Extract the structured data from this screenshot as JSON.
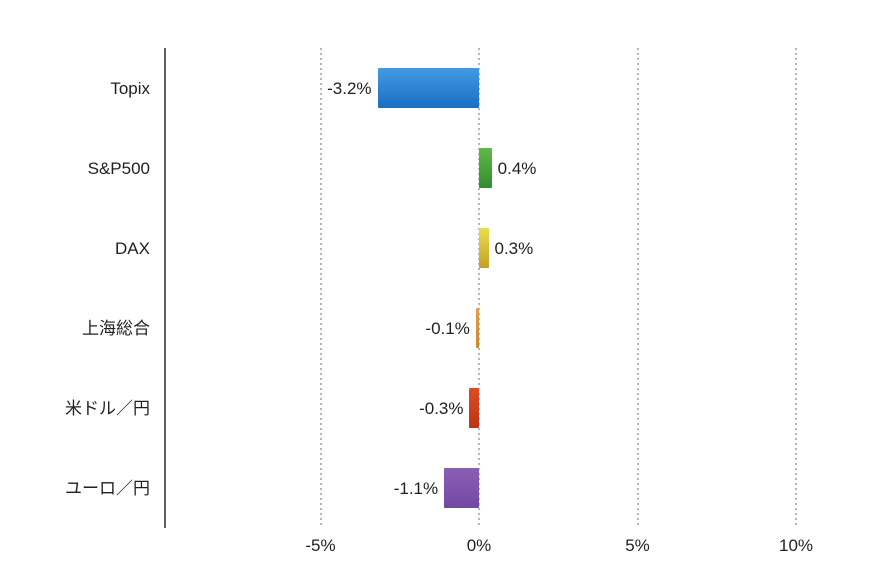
{
  "chart_data": {
    "type": "bar",
    "orientation": "horizontal",
    "title": "",
    "categories": [
      "Topix",
      "S&P500",
      "DAX",
      "上海総合",
      "米ドル／円",
      "ユーロ／円"
    ],
    "values": [
      -3.2,
      0.4,
      0.3,
      -0.1,
      -0.3,
      -1.1
    ],
    "value_labels": [
      "-3.2%",
      "0.4%",
      "0.3%",
      "-0.1%",
      "-0.3%",
      "-1.1%"
    ],
    "bar_colors": [
      {
        "top": "#459ae2",
        "bottom": "#1a6ec3"
      },
      {
        "top": "#63b948",
        "bottom": "#2e8e2e"
      },
      {
        "top": "#ecdc52",
        "bottom": "#c3a21f"
      },
      {
        "top": "#e2a050",
        "bottom": "#cc8830"
      },
      {
        "top": "#dd4d24",
        "bottom": "#bd3415"
      },
      {
        "top": "#8a60b5",
        "bottom": "#7348a3"
      }
    ],
    "x_ticks": [
      {
        "value": -5,
        "label": "-5%"
      },
      {
        "value": 0,
        "label": "0%"
      },
      {
        "value": 5,
        "label": "5%"
      },
      {
        "value": 10,
        "label": "10%"
      }
    ],
    "xlim": [
      -9.9,
      12.3
    ],
    "grid": "vertical-dotted",
    "legend": "none",
    "background": "#ffffff",
    "axis_color": "#5f5f5f",
    "gridline_color": "#b5b5b5",
    "text_color": "#1f1f1f"
  }
}
